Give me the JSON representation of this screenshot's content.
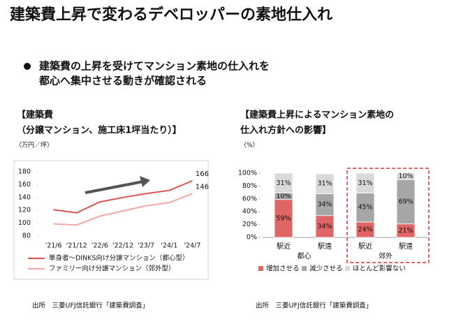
{
  "title": "建築費上昇で変わるデベロッパーの素地仕入れ",
  "bullet_lines": [
    "建築費の上昇を受けてマンション素地の仕入れを",
    "都心へ集中させる動きが確認される"
  ],
  "sources": [
    "出所　三菱UFJ信託銀行「建築費調査」",
    "出所　三菱UFJ信託銀行「建築費調査」"
  ],
  "chart_data": [
    {
      "type": "line",
      "title": [
        "【建築費",
        "（分譲マンション、施工床1坪当たり）】"
      ],
      "y_label": "（万円／坪）",
      "categories": [
        "'21/6",
        "'21/12",
        "'22/6",
        "'22/12",
        "'23/7",
        "'24/1",
        "'24/7"
      ],
      "series": [
        {
          "name": "単身者～DINKS向け分譲マンション（都心型）",
          "color": "#d9534f",
          "values": [
            121,
            116,
            133,
            140,
            146,
            151,
            166
          ]
        },
        {
          "name": "ファミリー向け分譲マンション（郊外型）",
          "color": "#f2a7a4",
          "values": [
            99,
            97,
            111,
            119,
            127,
            132,
            146
          ]
        }
      ],
      "ylim": [
        80,
        180
      ],
      "yticks": [
        80,
        100,
        120,
        140,
        160,
        180
      ],
      "grid": false
    },
    {
      "type": "stacked_bar",
      "title": [
        "【建築費上昇によるマンション素地の",
        "仕入れ方針への影響】"
      ],
      "y_label": "（%）",
      "categories": [
        "駅近",
        "駅遠",
        "駅近",
        "駅遠"
      ],
      "groups": [
        "都心",
        "郊外"
      ],
      "series": [
        {
          "name": "増加させる",
          "color": "#e06666",
          "values": [
            59,
            34,
            24,
            21
          ],
          "value_labels": [
            "59%",
            "34%",
            "24%",
            "21%"
          ]
        },
        {
          "name": "減少させる",
          "color": "#a6a6a6",
          "values": [
            10,
            34,
            45,
            69
          ],
          "value_labels": [
            "10%",
            "34%",
            "45%",
            "69%"
          ]
        },
        {
          "name": "ほとんど影響ない",
          "color": "#d9d9d9",
          "values": [
            31,
            31,
            31,
            10
          ],
          "value_labels": [
            "31%",
            "31%",
            "31%",
            "10%"
          ]
        }
      ],
      "ylim": [
        0,
        100
      ],
      "yticks": [
        {
          "value": 0,
          "label": "0%"
        },
        {
          "value": 20,
          "label": "20%"
        },
        {
          "value": 40,
          "label": "40%"
        },
        {
          "value": 60,
          "label": "60%"
        },
        {
          "value": 80,
          "label": "80%"
        },
        {
          "value": 100,
          "label": "100%"
        }
      ]
    }
  ]
}
